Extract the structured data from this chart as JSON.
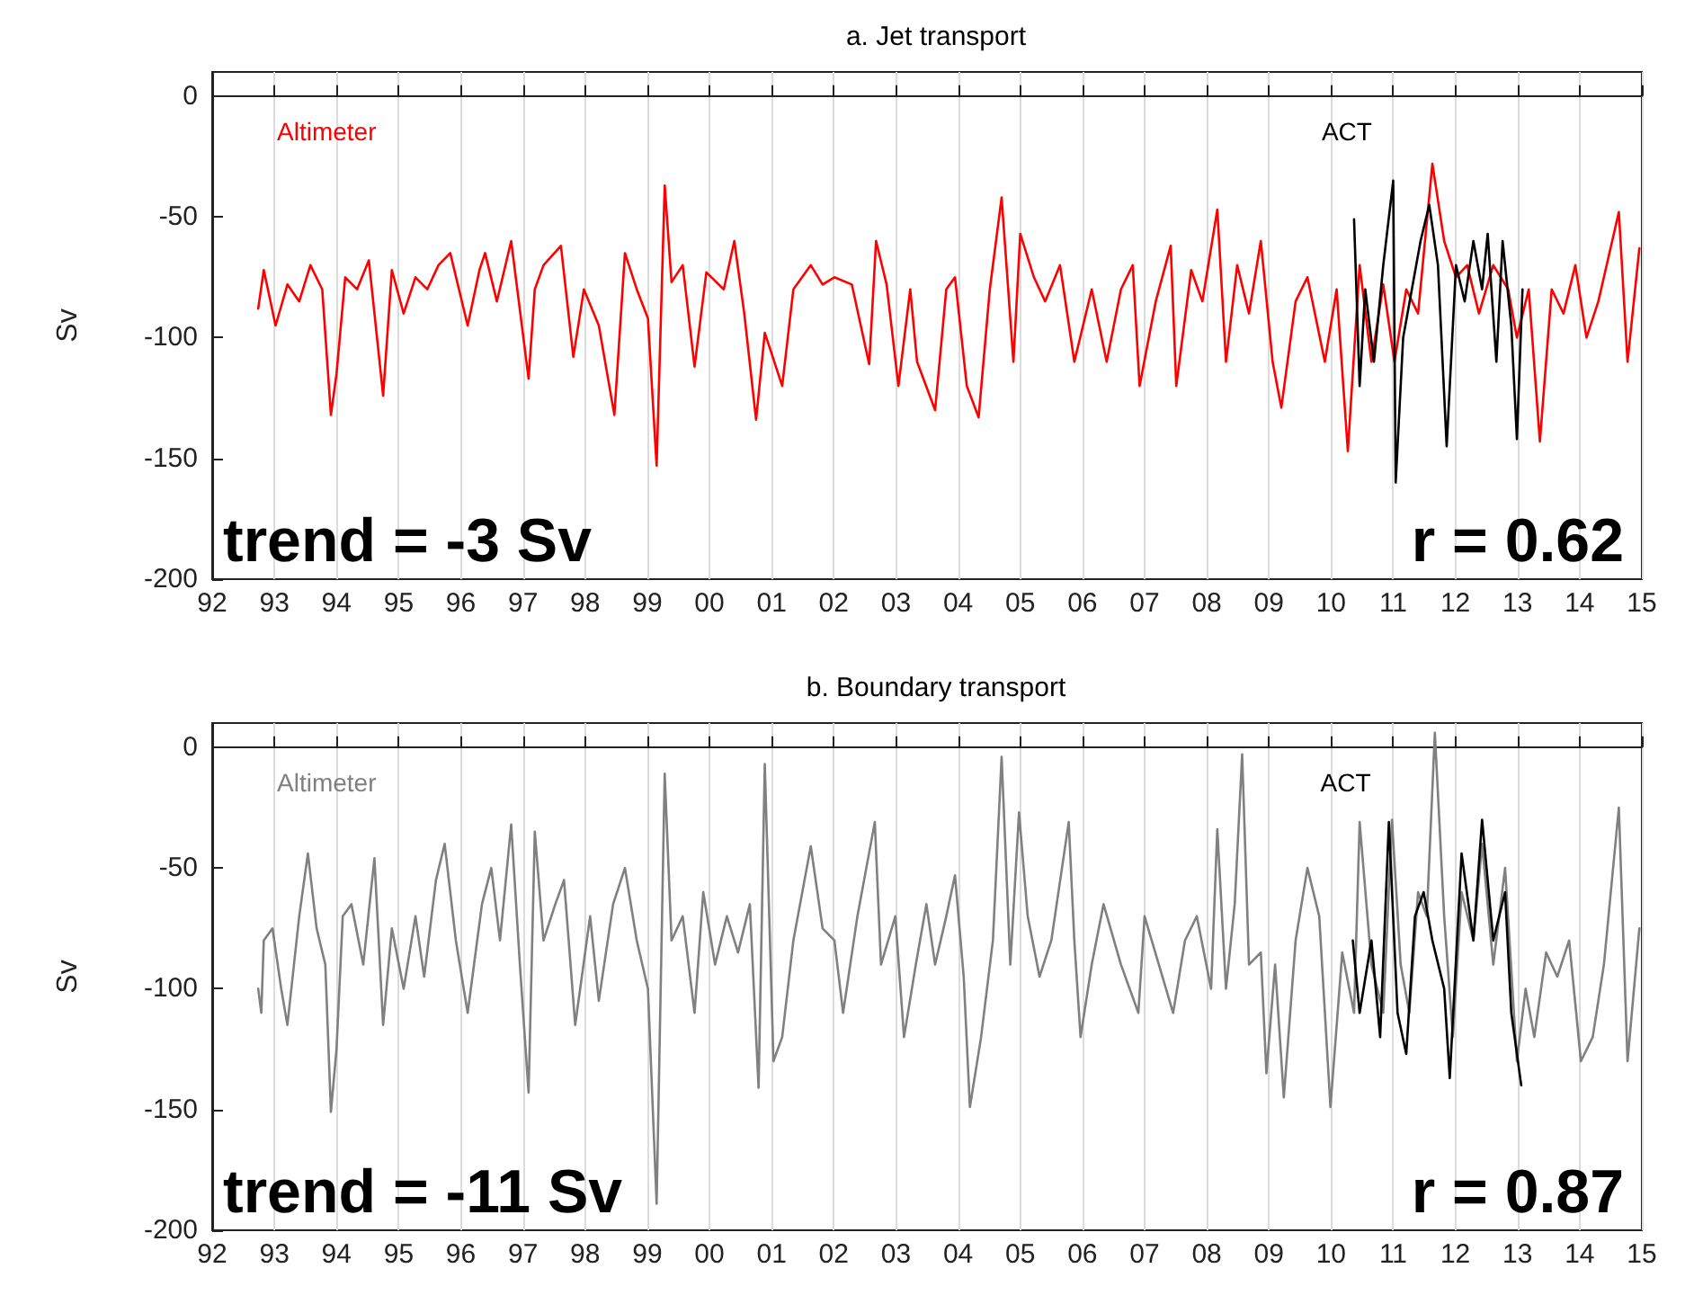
{
  "chart_data": [
    {
      "type": "line",
      "title": "a. Jet transport",
      "ylabel": "Sv",
      "annotations": [
        "trend = -3 Sv",
        "r = 0.62"
      ],
      "xlim": [
        1992,
        2015
      ],
      "ylim": [
        -200,
        10
      ],
      "xticks": [
        {
          "value": 1992,
          "label": "92"
        },
        {
          "value": 1993,
          "label": "93"
        },
        {
          "value": 1994,
          "label": "94"
        },
        {
          "value": 1995,
          "label": "95"
        },
        {
          "value": 1996,
          "label": "96"
        },
        {
          "value": 1997,
          "label": "97"
        },
        {
          "value": 1998,
          "label": "98"
        },
        {
          "value": 1999,
          "label": "99"
        },
        {
          "value": 2000,
          "label": "00"
        },
        {
          "value": 2001,
          "label": "01"
        },
        {
          "value": 2002,
          "label": "02"
        },
        {
          "value": 2003,
          "label": "03"
        },
        {
          "value": 2004,
          "label": "04"
        },
        {
          "value": 2005,
          "label": "05"
        },
        {
          "value": 2006,
          "label": "06"
        },
        {
          "value": 2007,
          "label": "07"
        },
        {
          "value": 2008,
          "label": "08"
        },
        {
          "value": 2009,
          "label": "09"
        },
        {
          "value": 2010,
          "label": "10"
        },
        {
          "value": 2011,
          "label": "11"
        },
        {
          "value": 2012,
          "label": "12"
        },
        {
          "value": 2013,
          "label": "13"
        },
        {
          "value": 2014,
          "label": "14"
        },
        {
          "value": 2015,
          "label": "15"
        }
      ],
      "yticks": [
        0,
        -50,
        -100,
        -150,
        -200
      ],
      "grid": "x",
      "legend": false,
      "marker": "none",
      "line_style": "solid",
      "series": [
        {
          "name": "Altimeter",
          "color": "#ff0000",
          "x": [
            1992.74,
            1992.83,
            1993.02,
            1993.21,
            1993.4,
            1993.58,
            1993.77,
            1993.91,
            1994.0,
            1994.14,
            1994.33,
            1994.52,
            1994.75,
            1994.89,
            1995.08,
            1995.27,
            1995.46,
            1995.64,
            1995.83,
            1996.11,
            1996.3,
            1996.39,
            1996.58,
            1996.81,
            1997.09,
            1997.19,
            1997.33,
            1997.61,
            1997.81,
            1997.98,
            1998.22,
            1998.47,
            1998.64,
            1998.83,
            1999.01,
            1999.15,
            1999.28,
            1999.39,
            1999.57,
            1999.76,
            1999.95,
            2000.23,
            2000.4,
            2000.56,
            2000.75,
            2000.89,
            2000.98,
            2001.17,
            2001.35,
            2001.63,
            2001.82,
            2002.01,
            2002.29,
            2002.57,
            2002.68,
            2002.85,
            2003.04,
            2003.23,
            2003.34,
            2003.63,
            2003.81,
            2003.95,
            2004.14,
            2004.33,
            2004.51,
            2004.7,
            2004.89,
            2005.0,
            2005.22,
            2005.4,
            2005.64,
            2005.87,
            2006.15,
            2006.39,
            2006.62,
            2006.81,
            2006.92,
            2007.18,
            2007.42,
            2007.51,
            2007.75,
            2007.93,
            2008.17,
            2008.31,
            2008.49,
            2008.68,
            2008.87,
            2009.06,
            2009.2,
            2009.43,
            2009.62,
            2009.9,
            2010.09,
            2010.27,
            2010.46,
            2010.65,
            2010.84,
            2011.02,
            2011.21,
            2011.4,
            2011.63,
            2011.82,
            2012.01,
            2012.19,
            2012.38,
            2012.61,
            2012.85,
            2012.99,
            2013.18,
            2013.36,
            2013.55,
            2013.74,
            2013.93,
            2014.11,
            2014.3,
            2014.63,
            2014.77,
            2014.96
          ],
          "values": [
            -88,
            -72,
            -95,
            -78,
            -85,
            -70,
            -80,
            -132,
            -115,
            -75,
            -80,
            -68,
            -124,
            -72,
            -90,
            -75,
            -80,
            -70,
            -65,
            -95,
            -72,
            -65,
            -85,
            -60,
            -117,
            -80,
            -70,
            -62,
            -108,
            -80,
            -95,
            -132,
            -65,
            -80,
            -92,
            -153,
            -37,
            -77,
            -70,
            -112,
            -73,
            -80,
            -60,
            -90,
            -134,
            -98,
            -105,
            -120,
            -80,
            -70,
            -78,
            -75,
            -78,
            -111,
            -60,
            -78,
            -120,
            -80,
            -110,
            -130,
            -80,
            -75,
            -120,
            -133,
            -80,
            -42,
            -110,
            -57,
            -75,
            -85,
            -70,
            -110,
            -80,
            -110,
            -80,
            -70,
            -120,
            -85,
            -62,
            -120,
            -72,
            -85,
            -47,
            -110,
            -70,
            -90,
            -60,
            -110,
            -129,
            -85,
            -75,
            -110,
            -80,
            -147,
            -70,
            -110,
            -78,
            -110,
            -80,
            -90,
            -28,
            -60,
            -75,
            -70,
            -90,
            -70,
            -80,
            -100,
            -80,
            -143,
            -80,
            -90,
            -70,
            -100,
            -85,
            -48,
            -110,
            -63
          ]
        },
        {
          "name": "ACT",
          "color": "#000000",
          "x": [
            2010.37,
            2010.46,
            2010.55,
            2010.69,
            2010.84,
            2011.0,
            2011.04,
            2011.16,
            2011.3,
            2011.44,
            2011.58,
            2011.72,
            2011.86,
            2012.01,
            2012.15,
            2012.29,
            2012.43,
            2012.52,
            2012.66,
            2012.76,
            2012.9,
            2012.99,
            2013.08
          ],
          "values": [
            -51,
            -120,
            -80,
            -110,
            -70,
            -35,
            -160,
            -100,
            -80,
            -60,
            -45,
            -70,
            -145,
            -70,
            -85,
            -60,
            -80,
            -57,
            -110,
            -60,
            -95,
            -142,
            -80
          ]
        }
      ]
    },
    {
      "type": "line",
      "title": "b. Boundary transport",
      "ylabel": "Sv",
      "annotations": [
        "trend = -11 Sv",
        "r = 0.87"
      ],
      "xlim": [
        1992,
        2015
      ],
      "ylim": [
        -200,
        10
      ],
      "xticks": [
        {
          "value": 1992,
          "label": "92"
        },
        {
          "value": 1993,
          "label": "93"
        },
        {
          "value": 1994,
          "label": "94"
        },
        {
          "value": 1995,
          "label": "95"
        },
        {
          "value": 1996,
          "label": "96"
        },
        {
          "value": 1997,
          "label": "97"
        },
        {
          "value": 1998,
          "label": "98"
        },
        {
          "value": 1999,
          "label": "99"
        },
        {
          "value": 2000,
          "label": "00"
        },
        {
          "value": 2001,
          "label": "01"
        },
        {
          "value": 2002,
          "label": "02"
        },
        {
          "value": 2003,
          "label": "03"
        },
        {
          "value": 2004,
          "label": "04"
        },
        {
          "value": 2005,
          "label": "05"
        },
        {
          "value": 2006,
          "label": "06"
        },
        {
          "value": 2007,
          "label": "07"
        },
        {
          "value": 2008,
          "label": "08"
        },
        {
          "value": 2009,
          "label": "09"
        },
        {
          "value": 2010,
          "label": "10"
        },
        {
          "value": 2011,
          "label": "11"
        },
        {
          "value": 2012,
          "label": "12"
        },
        {
          "value": 2013,
          "label": "13"
        },
        {
          "value": 2014,
          "label": "14"
        },
        {
          "value": 2015,
          "label": "15"
        }
      ],
      "yticks": [
        0,
        -50,
        -100,
        -150,
        -200
      ],
      "grid": "x",
      "legend": false,
      "marker": "none",
      "line_style": "solid",
      "series": [
        {
          "name": "Altimeter",
          "color": "#808080",
          "x": [
            1992.74,
            1992.79,
            1992.83,
            1992.97,
            1993.11,
            1993.21,
            1993.4,
            1993.54,
            1993.68,
            1993.82,
            1993.91,
            1994.0,
            1994.1,
            1994.24,
            1994.43,
            1994.61,
            1994.75,
            1994.89,
            1995.08,
            1995.27,
            1995.41,
            1995.6,
            1995.74,
            1995.92,
            1996.11,
            1996.34,
            1996.49,
            1996.63,
            1996.81,
            1996.95,
            1997.09,
            1997.19,
            1997.33,
            1997.52,
            1997.66,
            1997.84,
            1998.08,
            1998.22,
            1998.45,
            1998.64,
            1998.83,
            1999.01,
            1999.15,
            1999.28,
            1999.39,
            1999.57,
            1999.76,
            1999.9,
            2000.09,
            2000.28,
            2000.46,
            2000.65,
            2000.79,
            2000.89,
            2001.03,
            2001.17,
            2001.35,
            2001.63,
            2001.82,
            2002.01,
            2002.15,
            2002.38,
            2002.66,
            2002.76,
            2002.99,
            2003.13,
            2003.32,
            2003.49,
            2003.63,
            2003.81,
            2003.95,
            2004.09,
            2004.19,
            2004.37,
            2004.56,
            2004.7,
            2004.84,
            2004.98,
            2005.12,
            2005.31,
            2005.5,
            2005.78,
            2005.87,
            2005.97,
            2006.15,
            2006.34,
            2006.62,
            2006.9,
            2007.0,
            2007.23,
            2007.46,
            2007.65,
            2007.84,
            2008.07,
            2008.17,
            2008.31,
            2008.45,
            2008.57,
            2008.68,
            2008.87,
            2008.96,
            2009.1,
            2009.24,
            2009.43,
            2009.62,
            2009.81,
            2009.99,
            2010.18,
            2010.37,
            2010.46,
            2010.65,
            2010.84,
            2010.98,
            2011.12,
            2011.26,
            2011.4,
            2011.54,
            2011.67,
            2011.82,
            2011.96,
            2012.1,
            2012.29,
            2012.43,
            2012.61,
            2012.8,
            2012.99,
            2013.13,
            2013.27,
            2013.46,
            2013.64,
            2013.83,
            2014.02,
            2014.21,
            2014.39,
            2014.63,
            2014.77,
            2014.96
          ],
          "values": [
            -100,
            -110,
            -80,
            -75,
            -100,
            -115,
            -70,
            -44,
            -75,
            -90,
            -151,
            -125,
            -70,
            -65,
            -90,
            -46,
            -115,
            -75,
            -100,
            -70,
            -95,
            -55,
            -40,
            -80,
            -110,
            -65,
            -50,
            -80,
            -32,
            -90,
            -143,
            -35,
            -80,
            -65,
            -55,
            -115,
            -70,
            -105,
            -65,
            -50,
            -80,
            -100,
            -189,
            -11,
            -80,
            -70,
            -110,
            -60,
            -90,
            -70,
            -85,
            -65,
            -141,
            -7,
            -130,
            -120,
            -80,
            -41,
            -75,
            -80,
            -110,
            -70,
            -31,
            -90,
            -70,
            -120,
            -90,
            -65,
            -90,
            -70,
            -53,
            -95,
            -149,
            -120,
            -80,
            -4,
            -90,
            -27,
            -70,
            -95,
            -80,
            -31,
            -80,
            -120,
            -90,
            -65,
            -90,
            -110,
            -70,
            -90,
            -110,
            -80,
            -70,
            -100,
            -34,
            -100,
            -65,
            -3,
            -90,
            -85,
            -135,
            -90,
            -145,
            -80,
            -50,
            -70,
            -149,
            -85,
            -110,
            -31,
            -90,
            -110,
            -30,
            -90,
            -110,
            -60,
            -70,
            6,
            -70,
            -120,
            -60,
            -80,
            -40,
            -90,
            -50,
            -130,
            -100,
            -120,
            -85,
            -95,
            -80,
            -130,
            -120,
            -90,
            -25,
            -130,
            -75
          ]
        },
        {
          "name": "ACT",
          "color": "#000000",
          "x": [
            2010.35,
            2010.46,
            2010.65,
            2010.79,
            2010.93,
            2011.07,
            2011.21,
            2011.35,
            2011.49,
            2011.63,
            2011.82,
            2011.91,
            2012.1,
            2012.29,
            2012.43,
            2012.61,
            2012.8,
            2012.9,
            2013.06
          ],
          "values": [
            -80,
            -110,
            -80,
            -120,
            -31,
            -110,
            -127,
            -70,
            -60,
            -80,
            -100,
            -137,
            -44,
            -80,
            -30,
            -80,
            -60,
            -110,
            -140
          ]
        }
      ]
    }
  ]
}
